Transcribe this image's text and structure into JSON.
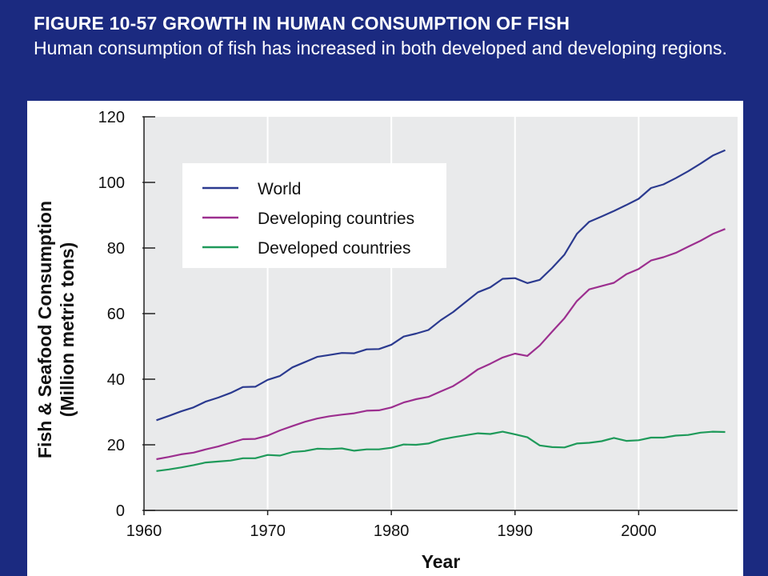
{
  "slide": {
    "heading": "FIGURE 10-57 GROWTH IN HUMAN CONSUMPTION OF FISH",
    "caption": "Human consumption of fish has increased in both developed and developing regions."
  },
  "chart_data": {
    "type": "line",
    "title": "",
    "xlabel": "Year",
    "ylabel_line1": "Fish & Seafood Consumption",
    "ylabel_line2": "(Million metric tons)",
    "xlim": [
      1960,
      2008
    ],
    "ylim": [
      0,
      120
    ],
    "x_ticks": [
      1960,
      1970,
      1980,
      1990,
      2000
    ],
    "y_ticks": [
      0,
      20,
      40,
      60,
      80,
      100,
      120
    ],
    "grid": "vertical",
    "legend_position": "top-left",
    "x": [
      1961,
      1962,
      1963,
      1964,
      1965,
      1966,
      1967,
      1968,
      1969,
      1970,
      1971,
      1972,
      1973,
      1974,
      1975,
      1976,
      1977,
      1978,
      1979,
      1980,
      1981,
      1982,
      1983,
      1984,
      1985,
      1986,
      1987,
      1988,
      1989,
      1990,
      1991,
      1992,
      1993,
      1994,
      1995,
      1996,
      1997,
      1998,
      1999,
      2000,
      2001,
      2002,
      2003,
      2004,
      2005,
      2006,
      2007
    ],
    "series": [
      {
        "name": "World",
        "color": "#2b3a8f",
        "values": [
          27.5,
          28.8,
          30.2,
          31.4,
          33.2,
          34.4,
          35.8,
          37.6,
          37.7,
          39.8,
          41.0,
          43.6,
          45.2,
          46.8,
          47.4,
          48.0,
          47.9,
          49.1,
          49.2,
          50.5,
          53.0,
          53.9,
          55.0,
          58.0,
          60.5,
          63.5,
          66.5,
          68.0,
          70.6,
          70.8,
          69.3,
          70.3,
          73.9,
          78.0,
          84.3,
          88.0,
          89.6,
          91.3,
          93.1,
          95.0,
          98.3,
          99.4,
          101.3,
          103.4,
          105.7,
          108.2,
          109.8
        ]
      },
      {
        "name": "Developing countries",
        "color": "#9c2f8f",
        "values": [
          15.6,
          16.3,
          17.1,
          17.6,
          18.6,
          19.5,
          20.6,
          21.7,
          21.8,
          22.8,
          24.4,
          25.7,
          27.0,
          28.0,
          28.7,
          29.2,
          29.6,
          30.4,
          30.5,
          31.4,
          32.9,
          33.9,
          34.6,
          36.3,
          37.9,
          40.3,
          43.0,
          44.7,
          46.6,
          47.8,
          47.1,
          50.3,
          54.5,
          58.6,
          63.8,
          67.4,
          68.4,
          69.4,
          72.0,
          73.6,
          76.2,
          77.2,
          78.5,
          80.4,
          82.2,
          84.3,
          85.8
        ]
      },
      {
        "name": "Developed countries",
        "color": "#1f9a5a",
        "values": [
          12.0,
          12.5,
          13.1,
          13.8,
          14.6,
          14.9,
          15.2,
          15.9,
          15.9,
          16.9,
          16.7,
          17.8,
          18.1,
          18.8,
          18.7,
          18.9,
          18.2,
          18.6,
          18.6,
          19.1,
          20.1,
          20.0,
          20.4,
          21.6,
          22.3,
          22.9,
          23.5,
          23.3,
          24.0,
          23.2,
          22.3,
          19.8,
          19.3,
          19.2,
          20.4,
          20.6,
          21.1,
          22.1,
          21.2,
          21.4,
          22.2,
          22.2,
          22.8,
          23.0,
          23.7,
          24.0,
          23.9
        ]
      }
    ]
  }
}
